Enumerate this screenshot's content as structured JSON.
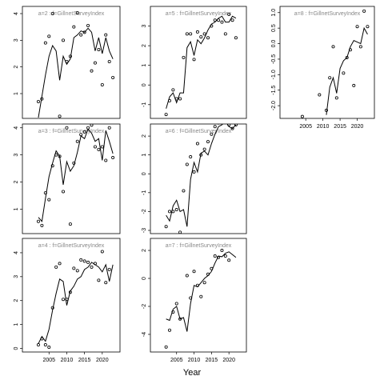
{
  "xlabel": "Year",
  "chart_data": [
    {
      "type": "line",
      "title": "a=2 : f=GillnetSurveyIndex",
      "color": "#000000",
      "x": [
        2002,
        2003,
        2004,
        2005,
        2006,
        2007,
        2008,
        2009,
        2010,
        2011,
        2012,
        2013,
        2014,
        2015,
        2016,
        2017,
        2018,
        2019,
        2020,
        2021,
        2022,
        2023
      ],
      "observed": [
        0.7,
        0.8,
        2.9,
        3.15,
        4.0,
        null,
        0.15,
        3.0,
        2.2,
        2.4,
        3.5,
        4.03,
        3.2,
        3.3,
        3.55,
        1.85,
        2.15,
        2.65,
        1.33,
        3.2,
        2.2,
        1.6
      ],
      "fitted": [
        0.1,
        0.9,
        1.7,
        2.4,
        2.8,
        2.6,
        1.5,
        2.4,
        2.1,
        2.3,
        3.1,
        3.2,
        3.35,
        3.3,
        3.45,
        3.3,
        2.6,
        3.1,
        2.5,
        3.1,
        2.6,
        2.3
      ],
      "xlim": [
        1997.5,
        2025
      ],
      "ylim": [
        0.07,
        4.27
      ],
      "yticks": [
        1,
        2,
        3,
        4
      ]
    },
    {
      "type": "line",
      "title": "a=5 : f=GillnetSurveyIndex",
      "color": "#000000",
      "x": [
        2002,
        2003,
        2004,
        2005,
        2006,
        2007,
        2008,
        2009,
        2010,
        2011,
        2012,
        2013,
        2014,
        2015,
        2016,
        2017,
        2018,
        2019,
        2020,
        2021,
        2022,
        2023
      ],
      "observed": [
        -1.5,
        -0.8,
        -0.25,
        -0.7,
        -0.7,
        1.4,
        2.6,
        2.6,
        1.3,
        2.7,
        2.45,
        2.6,
        2.4,
        3.0,
        3.3,
        3.3,
        3.2,
        2.6,
        3.6,
        3.3,
        2.4,
        null
      ],
      "fitted": [
        -1.2,
        -0.6,
        -0.4,
        -0.9,
        -0.4,
        -0.4,
        1.9,
        2.2,
        1.5,
        2.3,
        2.1,
        2.4,
        2.8,
        3.1,
        3.2,
        3.4,
        3.5,
        3.2,
        3.2,
        3.5,
        3.4,
        null
      ],
      "xlim": [
        1997.5,
        2025
      ],
      "ylim": [
        -1.7,
        4.0
      ],
      "yticks": [
        -1,
        0,
        1,
        2,
        3
      ]
    },
    {
      "type": "line",
      "title": "a=8 : f=GillnetSurveyIndex",
      "color": "#000000",
      "x": [
        2002,
        2003,
        2004,
        2005,
        2006,
        2007,
        2008,
        2009,
        2010,
        2011,
        2012,
        2013,
        2014,
        2015,
        2016,
        2017,
        2018,
        2019,
        2020,
        2021,
        2022,
        2023
      ],
      "observed": [
        null,
        null,
        -2.35,
        null,
        null,
        null,
        null,
        -1.65,
        null,
        -2.15,
        -1.1,
        -0.1,
        -1.75,
        null,
        -0.95,
        -0.45,
        -0.2,
        -1.35,
        0.55,
        -0.1,
        1.05,
        0.55
      ],
      "fitted": [
        null,
        null,
        null,
        null,
        null,
        null,
        null,
        null,
        null,
        -2.3,
        -1.4,
        -1.1,
        -1.6,
        -0.8,
        -0.55,
        -0.45,
        -0.1,
        0.1,
        0.05,
        0.0,
        0.5,
        0.3
      ],
      "xlim": [
        1997.5,
        2025
      ],
      "ylim": [
        -2.41,
        1.2
      ],
      "yticks": [
        {
          "value": 1,
          "label": "1.0"
        },
        0.5,
        {
          "value": 0,
          "label": "0.0"
        },
        -0.5,
        {
          "value": -1,
          "label": "-1.0"
        },
        -1.5,
        {
          "value": -2,
          "label": "-2.0"
        }
      ],
      "xticks": [
        2005,
        2010,
        2015,
        2020
      ]
    },
    {
      "type": "line",
      "title": "a=3 : f=GillnetSurveyIndex",
      "color": "#000000",
      "x": [
        2002,
        2003,
        2004,
        2005,
        2006,
        2007,
        2008,
        2009,
        2010,
        2011,
        2012,
        2013,
        2014,
        2015,
        2016,
        2017,
        2018,
        2019,
        2020,
        2021,
        2022,
        2023
      ],
      "observed": [
        0.55,
        0.4,
        1.6,
        1.35,
        2.6,
        3.0,
        2.95,
        1.65,
        4.0,
        0.45,
        2.7,
        3.5,
        3.75,
        3.85,
        4.0,
        4.1,
        3.3,
        3.2,
        3.3,
        2.8,
        4.0,
        2.9
      ],
      "fitted": [
        0.7,
        0.55,
        1.4,
        2.2,
        2.7,
        3.15,
        2.95,
        1.9,
        2.75,
        2.4,
        2.6,
        3.1,
        3.7,
        3.6,
        3.95,
        3.8,
        3.5,
        3.6,
        2.8,
        3.9,
        3.5,
        3.05
      ],
      "xlim": [
        1997.5,
        2025
      ],
      "ylim": [
        0.1,
        4.14
      ],
      "yticks": [
        1,
        2,
        3,
        4
      ]
    },
    {
      "type": "line",
      "title": "a=6 : f=GillnetSurveyIndex",
      "color": "#000000",
      "x": [
        2002,
        2003,
        2004,
        2005,
        2006,
        2007,
        2008,
        2009,
        2010,
        2011,
        2012,
        2013,
        2014,
        2015,
        2016,
        2017,
        2018,
        2019,
        2020,
        2021,
        2022,
        2023
      ],
      "observed": [
        -2.8,
        -2.0,
        -2.0,
        -1.9,
        -3.1,
        -0.9,
        0.5,
        0.9,
        0.1,
        1.6,
        1.0,
        1.3,
        1.7,
        2.1,
        2.5,
        2.7,
        2.75,
        2.8,
        2.6,
        2.4,
        2.6,
        null
      ],
      "fitted": [
        -2.2,
        -2.5,
        -1.7,
        -1.4,
        -2.0,
        -1.9,
        -2.8,
        -0.3,
        0.6,
        0.1,
        1.1,
        1.2,
        1.0,
        1.6,
        2.1,
        2.5,
        2.6,
        2.8,
        2.5,
        2.4,
        2.6,
        null
      ],
      "xlim": [
        1997.5,
        2025
      ],
      "ylim": [
        -3.17,
        2.64
      ],
      "yticks": [
        -3,
        -2,
        -1,
        0,
        1,
        2
      ]
    },
    {
      "type": "line",
      "title": "a=4 : f=GillnetSurveyIndex",
      "color": "#000000",
      "x": [
        2002,
        2003,
        2004,
        2005,
        2006,
        2007,
        2008,
        2009,
        2010,
        2011,
        2012,
        2013,
        2014,
        2015,
        2016,
        2017,
        2018,
        2019,
        2020,
        2021,
        2022,
        2023
      ],
      "observed": [
        0.15,
        0.4,
        0.15,
        0.05,
        1.7,
        3.4,
        3.55,
        2.05,
        2.05,
        2.35,
        3.35,
        3.25,
        3.7,
        3.65,
        3.6,
        3.4,
        3.55,
        2.85,
        4.05,
        2.75,
        3.3,
        null
      ],
      "fitted": [
        0.2,
        0.5,
        0.3,
        0.8,
        1.6,
        2.3,
        2.9,
        2.8,
        1.8,
        2.4,
        2.6,
        2.9,
        3.0,
        3.3,
        3.4,
        3.6,
        3.5,
        3.4,
        3.2,
        3.5,
        2.8,
        3.5
      ],
      "xlim": [
        1997.5,
        2025
      ],
      "ylim": [
        -0.15,
        4.6
      ],
      "yticks": [
        0,
        1,
        2,
        3,
        4
      ],
      "xticks": [
        2005,
        2010,
        2015,
        2020
      ]
    },
    {
      "type": "line",
      "title": "a=7 : f=GillnetSurveyIndex",
      "color": "#000000",
      "x": [
        2002,
        2003,
        2004,
        2005,
        2006,
        2007,
        2008,
        2009,
        2010,
        2011,
        2012,
        2013,
        2014,
        2015,
        2016,
        2017,
        2018,
        2019,
        2020,
        2021,
        2022,
        2023
      ],
      "observed": [
        -4.9,
        -3.7,
        -2.4,
        -1.8,
        -2.9,
        null,
        0.2,
        -1.4,
        0.5,
        -0.5,
        -1.3,
        -0.3,
        0.3,
        0.7,
        1.6,
        1.5,
        2.0,
        1.6,
        1.3,
        null,
        null,
        null
      ],
      "fitted": [
        -2.9,
        -3.0,
        -2.2,
        -2.0,
        -2.9,
        -2.8,
        -3.8,
        -1.8,
        -0.5,
        -0.6,
        -0.3,
        0.0,
        0.2,
        0.5,
        1.1,
        1.6,
        1.55,
        1.8,
        1.9,
        1.7,
        1.5,
        null
      ],
      "xlim": [
        1997.5,
        2025
      ],
      "ylim": [
        -5.26,
        2.86
      ],
      "yticks": [
        -4,
        -2,
        0,
        2
      ],
      "xticks": [
        2005,
        2010,
        2015,
        2020
      ]
    }
  ]
}
